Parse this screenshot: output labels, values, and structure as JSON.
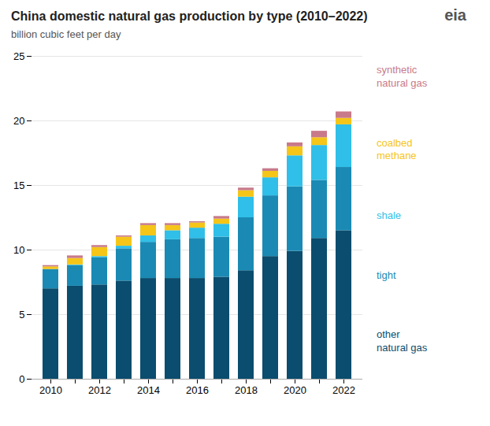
{
  "chart_data": {
    "type": "bar",
    "stacked": true,
    "title": "China domestic natural gas production by type (2010–2022)",
    "subtitle": "billion cubic feet per day",
    "categories": [
      "2010",
      null,
      "2012",
      null,
      "2014",
      null,
      "2016",
      null,
      "2018",
      null,
      "2020",
      null,
      "2022"
    ],
    "series": [
      {
        "name": "other\nnatural gas",
        "color": "#0a4d6e",
        "values": [
          7.0,
          7.2,
          7.3,
          7.6,
          7.8,
          7.8,
          7.8,
          7.9,
          8.4,
          9.5,
          9.9,
          10.9,
          11.5
        ]
      },
      {
        "name": "tight",
        "color": "#1a8ab4",
        "values": [
          1.5,
          1.6,
          2.1,
          2.5,
          2.8,
          3.0,
          3.1,
          3.1,
          4.1,
          4.7,
          5.0,
          4.5,
          4.9
        ]
      },
      {
        "name": "shale",
        "color": "#30bfe8",
        "values": [
          0.0,
          0.05,
          0.1,
          0.2,
          0.5,
          0.7,
          0.8,
          1.0,
          1.6,
          1.4,
          2.4,
          2.7,
          3.3
        ]
      },
      {
        "name": "coalbed\nmethane",
        "color": "#f5c518",
        "values": [
          0.2,
          0.5,
          0.7,
          0.7,
          0.8,
          0.4,
          0.4,
          0.4,
          0.5,
          0.5,
          0.7,
          0.6,
          0.5
        ]
      },
      {
        "name": "synthetic\nnatural gas",
        "color": "#c87a8a",
        "values": [
          0.1,
          0.2,
          0.15,
          0.1,
          0.15,
          0.15,
          0.1,
          0.2,
          0.2,
          0.2,
          0.3,
          0.5,
          0.5
        ]
      }
    ],
    "ylim": [
      0,
      25
    ],
    "yticks": [
      0,
      5,
      10,
      15,
      20,
      25
    ],
    "grid": true,
    "legend": "right",
    "annotations": [
      "eia"
    ]
  }
}
